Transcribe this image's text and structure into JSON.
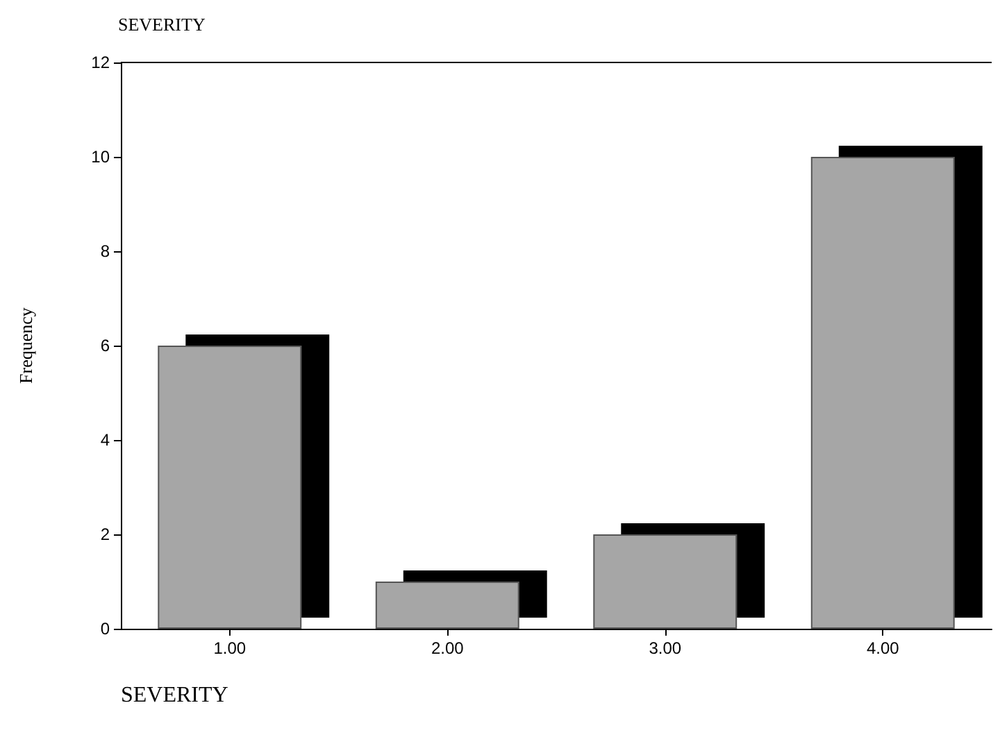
{
  "chart_data": {
    "type": "bar",
    "title": "SEVERITY",
    "xlabel": "SEVERITY",
    "ylabel": "Frequency",
    "categories": [
      "1.00",
      "2.00",
      "3.00",
      "4.00"
    ],
    "values": [
      6,
      1,
      2,
      10
    ],
    "color": "#a6a6a6",
    "ylim": [
      0,
      12
    ],
    "yticks": [
      0,
      2,
      4,
      6,
      8,
      10,
      12
    ],
    "grid": false
  }
}
